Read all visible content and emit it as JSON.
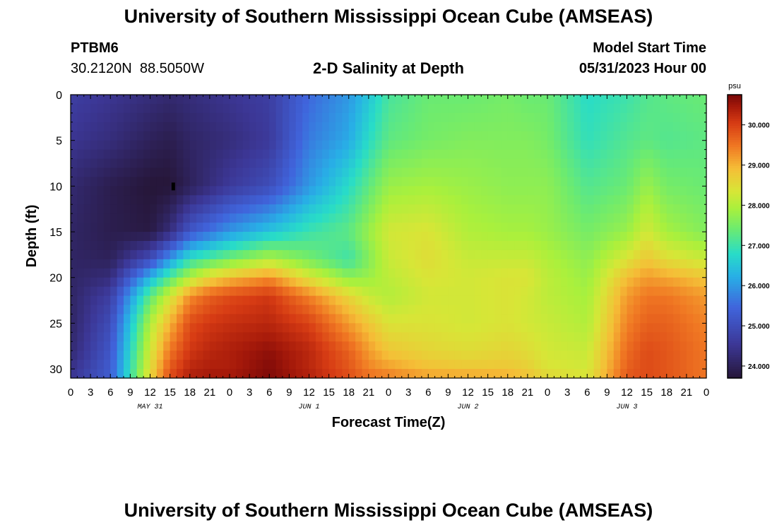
{
  "page": {
    "title_top": "University of Southern Mississippi Ocean Cube (AMSEAS)",
    "title_bottom": "University of Southern Mississippi Ocean Cube (AMSEAS)",
    "station": {
      "id": "PTBM6",
      "lat": "30.2120N",
      "lon": "88.5050W"
    },
    "model_start_label": "Model Start Time",
    "model_start_value": "05/31/2023 Hour 00"
  },
  "chart_data": {
    "type": "heatmap",
    "title": "2-D Salinity at Depth",
    "xlabel": "Forecast Time(Z)",
    "ylabel": "Depth (ft)",
    "xlim": [
      0,
      96
    ],
    "ylim": [
      0,
      31
    ],
    "x_tick_values": [
      0,
      3,
      6,
      9,
      12,
      15,
      18,
      21,
      24,
      27,
      30,
      33,
      36,
      39,
      42,
      45,
      48,
      51,
      54,
      57,
      60,
      63,
      66,
      69,
      72,
      75,
      78,
      81,
      84,
      87,
      90,
      93,
      96
    ],
    "x_tick_labels": [
      "0",
      "3",
      "6",
      "9",
      "12",
      "15",
      "18",
      "21",
      "0",
      "3",
      "6",
      "9",
      "12",
      "15",
      "18",
      "21",
      "0",
      "3",
      "6",
      "9",
      "12",
      "15",
      "18",
      "21",
      "0",
      "3",
      "6",
      "9",
      "12",
      "15",
      "18",
      "21",
      "0"
    ],
    "date_labels": [
      {
        "x": 12,
        "text": "MAY 31"
      },
      {
        "x": 36,
        "text": "JUN 1"
      },
      {
        "x": 60,
        "text": "JUN 2"
      },
      {
        "x": 84,
        "text": "JUN 3"
      }
    ],
    "y_ticks": [
      0,
      5,
      10,
      15,
      20,
      25,
      30
    ],
    "colorbar": {
      "unit": "psu",
      "min": 23.7,
      "max": 30.75,
      "ticks": [
        24.0,
        25.0,
        26.0,
        27.0,
        28.0,
        29.0,
        30.0
      ],
      "tick_labels": [
        "24.000",
        "25.000",
        "26.000",
        "27.000",
        "28.000",
        "29.000",
        "30.000"
      ]
    },
    "marker": {
      "x": 15.5,
      "y": 10
    },
    "salinity_field": {
      "time": [
        0,
        6,
        12,
        15,
        18,
        21,
        24,
        30,
        36,
        42,
        45,
        48,
        54,
        60,
        66,
        69,
        72,
        78,
        84,
        87,
        90,
        96
      ],
      "depth": [
        0,
        5,
        10,
        15,
        18,
        20,
        22,
        25,
        28,
        30,
        31
      ],
      "values": [
        [
          24.7,
          24.5,
          24.2,
          24.1,
          24.1,
          24.1,
          24.1,
          24.1,
          24.2,
          24.4,
          24.5
        ],
        [
          24.5,
          24.3,
          23.9,
          23.9,
          24.0,
          24.3,
          24.7,
          25.0,
          25.2,
          25.3,
          25.3
        ],
        [
          24.3,
          24.0,
          23.7,
          23.8,
          25.0,
          26.3,
          27.3,
          28.0,
          28.3,
          28.5,
          28.6
        ],
        [
          24.2,
          23.9,
          23.7,
          24.3,
          26.0,
          27.2,
          28.3,
          29.0,
          29.5,
          29.8,
          29.9
        ],
        [
          24.3,
          24.1,
          24.0,
          25.2,
          26.9,
          28.0,
          29.3,
          29.9,
          30.1,
          30.3,
          30.4
        ],
        [
          24.4,
          24.2,
          24.3,
          25.6,
          27.2,
          28.6,
          29.7,
          30.1,
          30.3,
          30.4,
          30.5
        ],
        [
          24.5,
          24.3,
          24.6,
          26.0,
          27.5,
          28.9,
          29.9,
          30.2,
          30.4,
          30.4,
          30.5
        ],
        [
          24.7,
          24.6,
          25.0,
          26.5,
          28.0,
          29.3,
          30.1,
          30.3,
          30.6,
          30.7,
          30.7
        ],
        [
          25.5,
          25.7,
          26.0,
          27.0,
          27.5,
          28.4,
          29.4,
          30.0,
          30.3,
          30.3,
          30.4
        ],
        [
          26.0,
          26.2,
          26.8,
          27.3,
          27.0,
          27.7,
          28.6,
          29.2,
          29.7,
          29.8,
          29.9
        ],
        [
          26.5,
          26.8,
          27.3,
          27.8,
          27.6,
          27.8,
          28.2,
          28.8,
          29.2,
          29.4,
          29.6
        ],
        [
          27.1,
          27.3,
          27.8,
          28.3,
          28.2,
          28.1,
          28.0,
          28.4,
          28.8,
          29.2,
          29.5
        ],
        [
          27.4,
          27.5,
          27.9,
          28.4,
          28.5,
          28.4,
          28.3,
          28.4,
          28.6,
          28.9,
          29.2
        ],
        [
          27.4,
          27.6,
          27.8,
          28.0,
          28.2,
          28.3,
          28.3,
          28.3,
          28.5,
          28.8,
          29.2
        ],
        [
          27.5,
          27.6,
          27.7,
          27.9,
          28.2,
          28.4,
          28.4,
          28.4,
          28.6,
          28.8,
          29.1
        ],
        [
          27.4,
          27.6,
          27.7,
          27.9,
          28.2,
          28.4,
          28.3,
          28.3,
          28.5,
          28.7,
          28.9
        ],
        [
          27.4,
          27.5,
          27.7,
          27.8,
          28.0,
          28.1,
          28.1,
          28.2,
          28.3,
          28.4,
          28.6
        ],
        [
          26.8,
          26.9,
          27.2,
          27.5,
          27.7,
          27.8,
          27.9,
          28.0,
          28.2,
          28.3,
          28.4
        ],
        [
          27.0,
          27.2,
          27.4,
          27.8,
          28.4,
          28.9,
          29.2,
          29.4,
          29.6,
          29.7,
          29.8
        ],
        [
          27.2,
          27.3,
          27.8,
          28.3,
          28.8,
          29.2,
          29.5,
          29.7,
          29.9,
          29.9,
          29.9
        ],
        [
          27.3,
          27.2,
          27.5,
          27.9,
          28.5,
          29.1,
          29.5,
          29.7,
          29.8,
          29.8,
          29.8
        ],
        [
          27.4,
          27.3,
          27.4,
          27.6,
          28.2,
          28.8,
          29.2,
          29.4,
          29.5,
          29.5,
          29.5
        ]
      ]
    }
  }
}
